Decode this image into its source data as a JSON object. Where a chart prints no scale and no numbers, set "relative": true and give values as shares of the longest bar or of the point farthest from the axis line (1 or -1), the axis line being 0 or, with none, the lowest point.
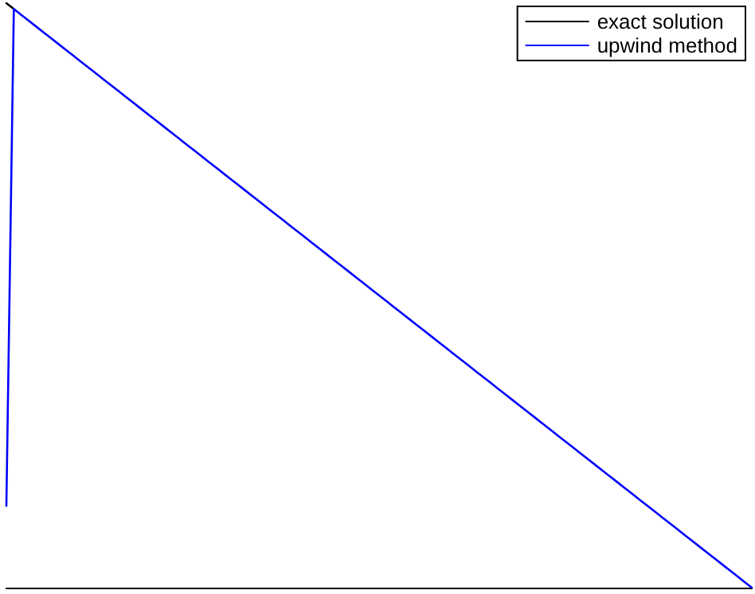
{
  "chart_data": {
    "type": "line",
    "relative": true,
    "grid": false,
    "legend": "top right",
    "tick_labels": false,
    "line_style": "solid",
    "categories": [
      null,
      null,
      null,
      null,
      null,
      null,
      null,
      null,
      null,
      null,
      null,
      null,
      null,
      null,
      null,
      null,
      null,
      null,
      null,
      null,
      null,
      null,
      null,
      null,
      null,
      null,
      null,
      null,
      null,
      null,
      null,
      null,
      null,
      null,
      null,
      null,
      null,
      null,
      null,
      null,
      null,
      null,
      null,
      null,
      null,
      null,
      null,
      null,
      null,
      null,
      null,
      null,
      null,
      null,
      null,
      null,
      null,
      null,
      null,
      null,
      null,
      null,
      null,
      null,
      null,
      null,
      null,
      null,
      null,
      null,
      null,
      null,
      null,
      null,
      null,
      null,
      null,
      null,
      null,
      null,
      null,
      null,
      null,
      null,
      null,
      null,
      null,
      null,
      null,
      null,
      null,
      null,
      null,
      null,
      null,
      null,
      null,
      null,
      null,
      null,
      null
    ],
    "series": [
      {
        "name": "exact solution",
        "color": "#000000",
        "values": [
          1,
          0.99,
          null,
          null,
          null,
          null,
          null,
          null,
          null,
          null,
          null,
          null,
          null,
          null,
          null,
          null,
          null,
          null,
          null,
          null,
          null,
          null,
          null,
          null,
          null,
          null,
          null,
          null,
          null,
          null,
          null,
          null,
          null,
          null,
          null,
          null,
          null,
          null,
          null,
          null,
          null,
          null,
          null,
          null,
          null,
          null,
          null,
          null,
          null,
          null,
          null,
          null,
          null,
          null,
          null,
          null,
          null,
          null,
          null,
          null,
          null,
          null,
          null,
          null,
          null,
          null,
          null,
          null,
          null,
          null,
          null,
          null,
          null,
          null,
          null,
          null,
          null,
          null,
          null,
          null,
          null,
          null,
          null,
          null,
          null,
          null,
          null,
          null,
          null,
          null,
          null,
          null,
          null,
          null,
          null,
          null,
          null,
          null,
          null,
          null,
          null
        ]
      },
      {
        "name": "upwind method",
        "color": "#0000ff",
        "values": [
          0.14,
          0.99,
          0.98,
          0.97,
          0.96,
          0.95,
          0.94,
          0.93,
          0.92,
          0.91,
          0.9,
          0.89,
          0.88,
          0.87,
          0.86,
          0.85,
          0.84,
          0.83,
          0.82,
          0.81,
          0.8,
          0.79,
          0.78,
          0.77,
          0.76,
          0.75,
          0.74,
          0.73,
          0.72,
          0.71,
          0.7,
          0.69,
          0.68,
          0.67,
          0.66,
          0.65,
          0.64,
          0.63,
          0.62,
          0.61,
          0.6,
          0.59,
          0.58,
          0.57,
          0.56,
          0.55,
          0.54,
          0.53,
          0.52,
          0.51,
          0.5,
          0.49,
          0.48,
          0.47,
          0.46,
          0.45,
          0.44,
          0.43,
          0.42,
          0.41,
          0.4,
          0.39,
          0.38,
          0.37,
          0.36,
          0.35,
          0.34,
          0.33,
          0.32,
          0.31,
          0.3,
          0.29,
          0.28,
          0.27,
          0.26,
          0.25,
          0.24,
          0.23,
          0.22,
          0.21,
          0.2,
          0.19,
          0.18,
          0.17,
          0.16,
          0.15,
          0.14,
          0.13,
          0.12,
          0.11,
          0.1,
          0.09,
          0.08,
          0.07,
          0.06,
          0.05,
          0.04,
          0.03,
          0.02,
          0.01,
          0
        ]
      }
    ]
  }
}
